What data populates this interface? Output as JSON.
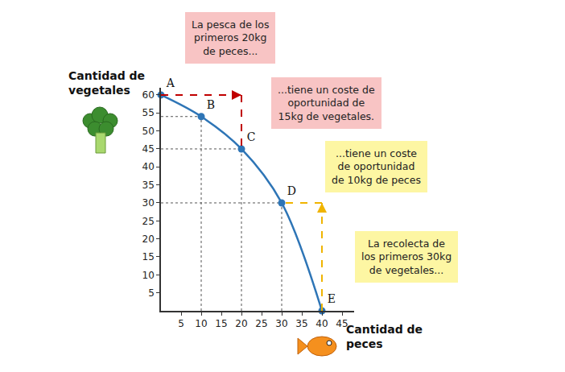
{
  "chart_data": {
    "type": "line",
    "x_label": "Cantidad de\npeces",
    "y_label": "Cantidad de\nvegetales",
    "x": [
      0,
      10,
      20,
      30,
      40
    ],
    "values": [
      60,
      54,
      45,
      30,
      0
    ],
    "point_labels": [
      "A",
      "B",
      "C",
      "D",
      "E"
    ],
    "color": "#2e75b6",
    "marker": "circle",
    "line_style": "solid",
    "grid": false,
    "xlim": [
      0,
      48
    ],
    "ylim": [
      0,
      62
    ],
    "xticks": [
      5,
      10,
      15,
      20,
      25,
      30,
      35,
      40,
      45
    ],
    "yticks": [
      5,
      10,
      15,
      20,
      25,
      30,
      35,
      40,
      45,
      50,
      55,
      60
    ],
    "annotations": [
      {
        "text": "La pesca de los\nprimeros 20kg\nde peces...",
        "color": "#f8c4c4"
      },
      {
        "text": "...tiene un coste de\noportunidad de\n15kg de vegetales.",
        "color": "#f8c4c4"
      },
      {
        "text": "...tiene un coste\nde oportunidad\nde 10kg de peces",
        "color": "#fdf6a3"
      },
      {
        "text": "La recolecta de\nlos primeros 30kg\nde vegetales...",
        "color": "#fdf6a3"
      }
    ],
    "arrows": [
      {
        "from": "A",
        "to": "C",
        "color": "#c00000"
      },
      {
        "from": "E",
        "to": "D",
        "color": "#f0b400"
      }
    ]
  }
}
